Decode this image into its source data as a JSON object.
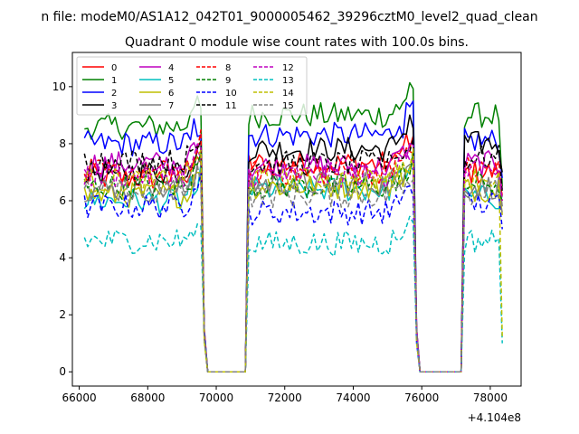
{
  "figure": {
    "suptitle": "n file: modeM0/AS1A12_042T01_9000005462_39296cztM0_level2_quad_clean",
    "title": "Quadrant 0 module wise count rates with 100.0s bins.",
    "offset_label": "+4.104e8"
  },
  "chart_data": {
    "type": "line",
    "title": "Quadrant 0 module wise count rates with 100.0s bins.",
    "xlabel": "",
    "ylabel": "",
    "x_offset": 410400000,
    "xlim": [
      65800,
      78900
    ],
    "ylim": [
      -0.5,
      11.2
    ],
    "xticks": [
      66000,
      68000,
      70000,
      72000,
      74000,
      76000,
      78000
    ],
    "xtick_labels": [
      "66000",
      "68000",
      "70000",
      "72000",
      "74000",
      "76000",
      "78000"
    ],
    "yticks": [
      0,
      2,
      4,
      6,
      8,
      10
    ],
    "ytick_labels": [
      "0",
      "2",
      "4",
      "6",
      "8",
      "10"
    ],
    "grid": false,
    "legend_position": "upper-left",
    "legend_columns": 4,
    "segments": [
      [
        66150,
        69550
      ],
      [
        70950,
        75750
      ],
      [
        77250,
        78350
      ]
    ],
    "gap_segments": [
      [
        69750,
        70850
      ],
      [
        75950,
        77150
      ]
    ],
    "transition_x": [
      69650,
      70950,
      75850,
      77250
    ],
    "series": [
      {
        "name": "0",
        "color": "#ff0000",
        "dash": "solid",
        "levels": [
          6.8,
          7.3,
          7.0
        ],
        "end": 6.2
      },
      {
        "name": "1",
        "color": "#008000",
        "dash": "solid",
        "levels": [
          8.6,
          9.0,
          9.0
        ],
        "end": 6.5
      },
      {
        "name": "2",
        "color": "#0000ff",
        "dash": "solid",
        "levels": [
          8.0,
          8.3,
          8.1
        ],
        "end": 6.8
      },
      {
        "name": "3",
        "color": "#000000",
        "dash": "solid",
        "levels": [
          7.0,
          7.8,
          8.0
        ],
        "end": 7.0
      },
      {
        "name": "4",
        "color": "#bf00bf",
        "dash": "solid",
        "levels": [
          7.3,
          7.2,
          7.3
        ],
        "end": 6.4
      },
      {
        "name": "5",
        "color": "#00bfbf",
        "dash": "solid",
        "levels": [
          6.0,
          6.4,
          6.1
        ],
        "end": 6.2
      },
      {
        "name": "6",
        "color": "#bfbf00",
        "dash": "solid",
        "levels": [
          6.2,
          6.5,
          6.4
        ],
        "end": 5.5
      },
      {
        "name": "7",
        "color": "#7f7f7f",
        "dash": "solid",
        "levels": [
          6.4,
          6.6,
          6.5
        ],
        "end": 5.8
      },
      {
        "name": "8",
        "color": "#ff0000",
        "dash": "dashed",
        "levels": [
          7.0,
          7.0,
          7.1
        ],
        "end": 6.0
      },
      {
        "name": "9",
        "color": "#008000",
        "dash": "dashed",
        "levels": [
          6.5,
          6.5,
          6.6
        ],
        "end": 6.0
      },
      {
        "name": "10",
        "color": "#0000ff",
        "dash": "dashed",
        "levels": [
          5.8,
          5.6,
          5.9
        ],
        "end": 5.0
      },
      {
        "name": "11",
        "color": "#000000",
        "dash": "dashed",
        "levels": [
          7.4,
          7.3,
          7.5
        ],
        "end": 6.3
      },
      {
        "name": "12",
        "color": "#bf00bf",
        "dash": "dashed",
        "levels": [
          6.9,
          6.9,
          7.0
        ],
        "end": 6.0
      },
      {
        "name": "13",
        "color": "#00bfbf",
        "dash": "dashed",
        "levels": [
          4.6,
          4.5,
          4.6
        ],
        "end": 1.0
      },
      {
        "name": "14",
        "color": "#bfbf00",
        "dash": "dashed",
        "levels": [
          6.7,
          6.7,
          6.8
        ],
        "end": 1.2
      },
      {
        "name": "15",
        "color": "#7f7f7f",
        "dash": "dashed",
        "levels": [
          6.3,
          6.2,
          6.3
        ],
        "end": 5.6
      }
    ]
  }
}
